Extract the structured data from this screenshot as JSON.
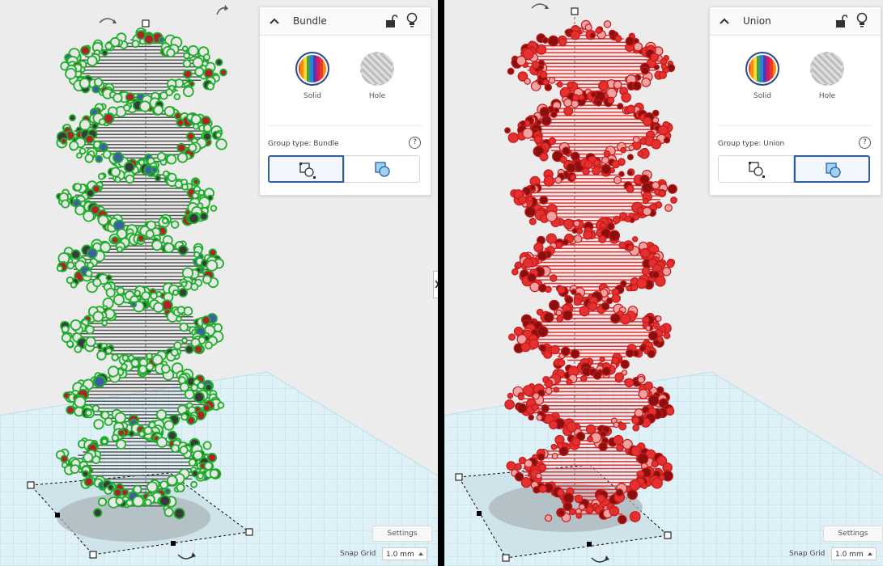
{
  "panels": {
    "left": {
      "title": "Bundle",
      "solid_label": "Solid",
      "hole_label": "Hole",
      "group_type_label": "Group type: Bundle",
      "active_group_button": "bundle",
      "settings_label": "Settings",
      "snap_grid_label": "Snap Grid",
      "snap_value": "1.0 mm",
      "shape_color": "#1eaf2a"
    },
    "right": {
      "title": "Union",
      "solid_label": "Solid",
      "hole_label": "Hole",
      "group_type_label": "Group type: Union",
      "active_group_button": "union",
      "settings_label": "Settings",
      "snap_grid_label": "Snap Grid",
      "snap_value": "1.0 mm",
      "shape_color": "#e53030"
    }
  },
  "help_glyph": "?",
  "collapse_glyph": "❯",
  "colors": {
    "selection_blue": "#2a5ea8",
    "workplane_grid": "#a9dbe8",
    "background": "#ececec"
  },
  "icons": [
    "chevron-up-icon",
    "lock-open-icon",
    "lightbulb-icon",
    "rotate-arrow-icon",
    "help-icon",
    "bundle-group-icon",
    "union-group-icon"
  ]
}
